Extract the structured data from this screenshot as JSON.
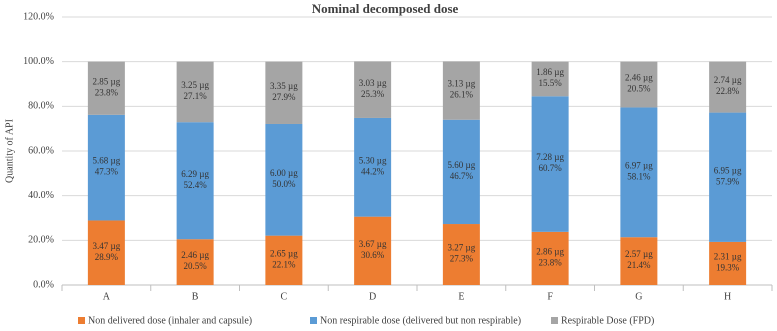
{
  "chart_data": {
    "type": "stacked-bar",
    "title": "Nominal decomposed dose",
    "y_label": "Quantity of API",
    "categories": [
      "A",
      "B",
      "C",
      "D",
      "E",
      "F",
      "G",
      "H"
    ],
    "series": [
      {
        "name": "Non delivered dose (inhaler and capsule)",
        "color": "#ed7d31",
        "values": [
          28.9,
          20.5,
          22.1,
          30.6,
          27.3,
          23.8,
          21.4,
          19.3
        ],
        "value_labels": [
          "28.9%",
          "20.5%",
          "22.1%",
          "30.6%",
          "27.3%",
          "23.8%",
          "21.4%",
          "19.3%"
        ],
        "dose_labels": [
          "3.47 µg",
          "2.46 µg",
          "2.65 µg",
          "3.67 µg",
          "3.27 µg",
          "2.86 µg",
          "2.57 µg",
          "2.31 µg"
        ]
      },
      {
        "name": "Non respirable dose (delivered but non respirable)",
        "color": "#5b9bd5",
        "values": [
          47.3,
          52.4,
          50.0,
          44.2,
          46.7,
          60.7,
          58.1,
          57.9
        ],
        "value_labels": [
          "47.3%",
          "52.4%",
          "50.0%",
          "44.2%",
          "46.7%",
          "60.7%",
          "58.1%",
          "57.9%"
        ],
        "dose_labels": [
          "5.68 µg",
          "6.29 µg",
          "6.00 µg",
          "5.30 µg",
          "5.60 µg",
          "7.28 µg",
          "6.97 µg",
          "6.95 µg"
        ]
      },
      {
        "name": "Respirable Dose (FPD)",
        "color": "#a5a5a5",
        "values": [
          23.8,
          27.1,
          27.9,
          25.3,
          26.1,
          15.5,
          20.5,
          22.8
        ],
        "value_labels": [
          "23.8%",
          "27.1%",
          "27.9%",
          "25.3%",
          "26.1%",
          "15.5%",
          "20.5%",
          "22.8%"
        ],
        "dose_labels": [
          "2.85 µg",
          "3.25 µg",
          "3.35 µg",
          "3.03 µg",
          "3.13 µg",
          "1.86 µg",
          "2.46 µg",
          "2.74 µg"
        ]
      }
    ],
    "ylim": [
      0,
      120
    ],
    "yticks": [
      {
        "value": 0,
        "label": "0.0%"
      },
      {
        "value": 20,
        "label": "20.0%"
      },
      {
        "value": 40,
        "label": "40.0%"
      },
      {
        "value": 60,
        "label": "60.0%"
      },
      {
        "value": 80,
        "label": "80.0%"
      },
      {
        "value": 100,
        "label": "100.0%"
      },
      {
        "value": 120,
        "label": "120.0%"
      }
    ],
    "grid": true,
    "legend": "bottom"
  }
}
